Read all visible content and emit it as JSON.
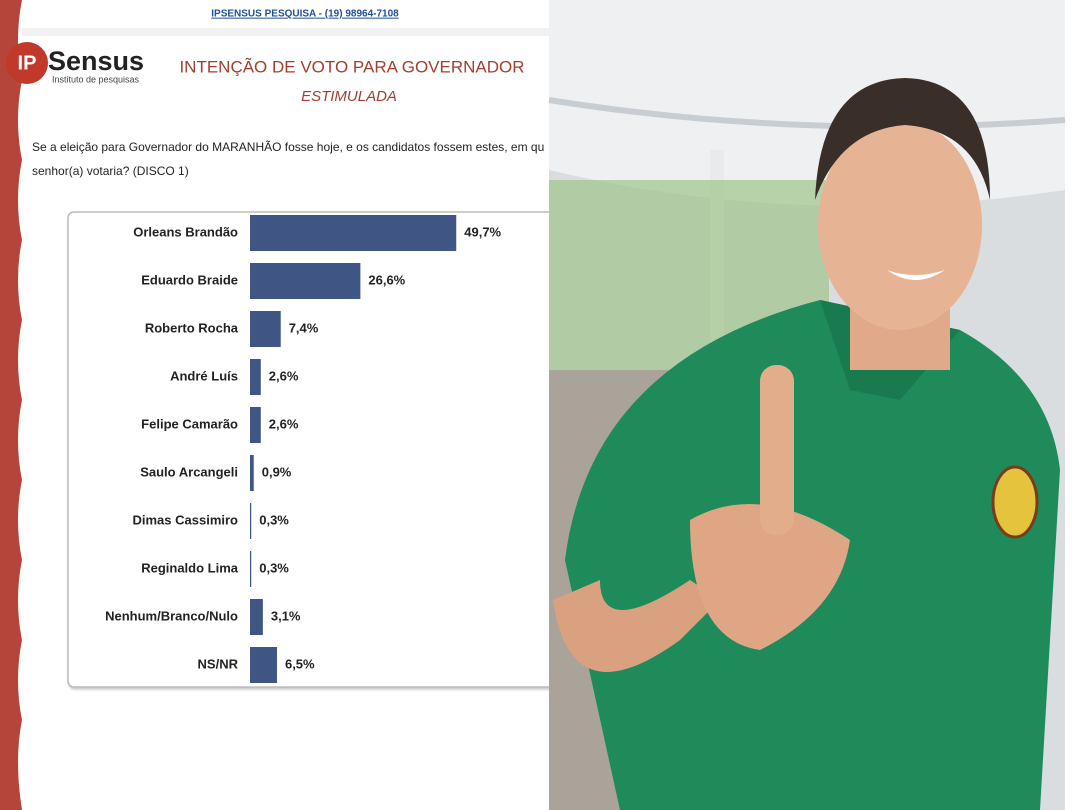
{
  "header": {
    "link": "IPSENSUS PESQUISA - (19) 98964-7108",
    "logo_mark": "IP",
    "logo_name": "Sensus",
    "logo_tagline": "Instituto de pesquisas",
    "title": "INTENÇÃO DE VOTO PARA GOVERNADOR",
    "subtitle": "ESTIMULADA"
  },
  "question": [
    "Se a eleição para Governador do MARANHÃO fosse hoje, e os candidatos fossem estes, em qu",
    "senhor(a) votaria? (DISCO 1)"
  ],
  "chart_data": {
    "type": "hbar",
    "color": "#3f5684",
    "categories": [
      "Orleans Brandão",
      "Eduardo Braide",
      "Roberto Rocha",
      "André Luís",
      "Felipe Camarão",
      "Saulo Arcangeli",
      "Dimas Cassimiro",
      "Reginaldo Lima",
      "Nenhum/Branco/Nulo",
      "NS/NR"
    ],
    "values": [
      49.7,
      26.6,
      7.4,
      2.6,
      2.6,
      0.9,
      0.3,
      0.3,
      3.1,
      6.5
    ],
    "value_labels": [
      "49,7%",
      "26,6%",
      "7,4%",
      "2,6%",
      "2,6%",
      "0,9%",
      "0,3%",
      "0,3%",
      "3,1%",
      "6,5%"
    ]
  }
}
